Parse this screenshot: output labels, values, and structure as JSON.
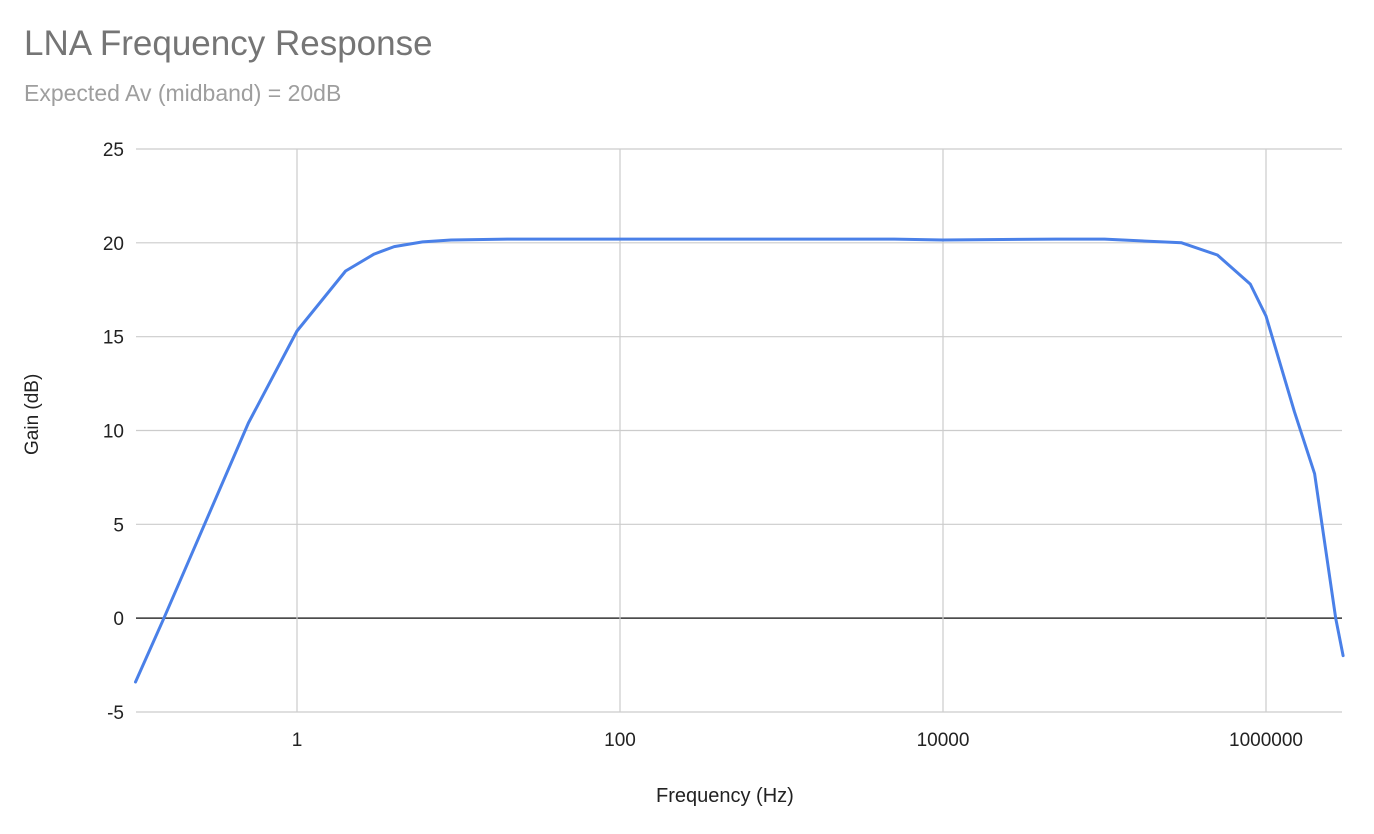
{
  "chart_data": {
    "type": "line",
    "title": "LNA Frequency Response",
    "subtitle": "Expected Av (midband) = 20dB",
    "xlabel": "Frequency (Hz)",
    "ylabel": "Gain (dB)",
    "xscale": "log",
    "xlim": [
      0.1,
      3000000
    ],
    "ylim": [
      -5,
      25
    ],
    "yticks": [
      -5,
      0,
      5,
      10,
      15,
      20,
      25
    ],
    "xticks": [
      "1",
      "100",
      "10000",
      "1000000"
    ],
    "grid": true,
    "legend": "none",
    "series": [
      {
        "name": "Gain (dB)",
        "color": "#4a80e8",
        "x": [
          0.1,
          0.15,
          0.5,
          1,
          2,
          3,
          4,
          6,
          9,
          20,
          100,
          1000,
          5000,
          10000,
          50000,
          100000,
          300000,
          500000,
          800000,
          1000000,
          1500000,
          2000000,
          2700000,
          3000000
        ],
        "values": [
          -3.4,
          0,
          10.4,
          15.3,
          18.5,
          19.4,
          19.8,
          20.05,
          20.15,
          20.2,
          20.2,
          20.2,
          20.2,
          20.15,
          20.2,
          20.2,
          20.0,
          19.35,
          17.8,
          16.1,
          11.0,
          7.7,
          0,
          -2.0
        ]
      }
    ]
  },
  "labels": {
    "title": "LNA Frequency Response",
    "subtitle": "Expected Av (midband) = 20dB",
    "xlabel": "Frequency (Hz)",
    "ylabel": "Gain (dB)"
  }
}
